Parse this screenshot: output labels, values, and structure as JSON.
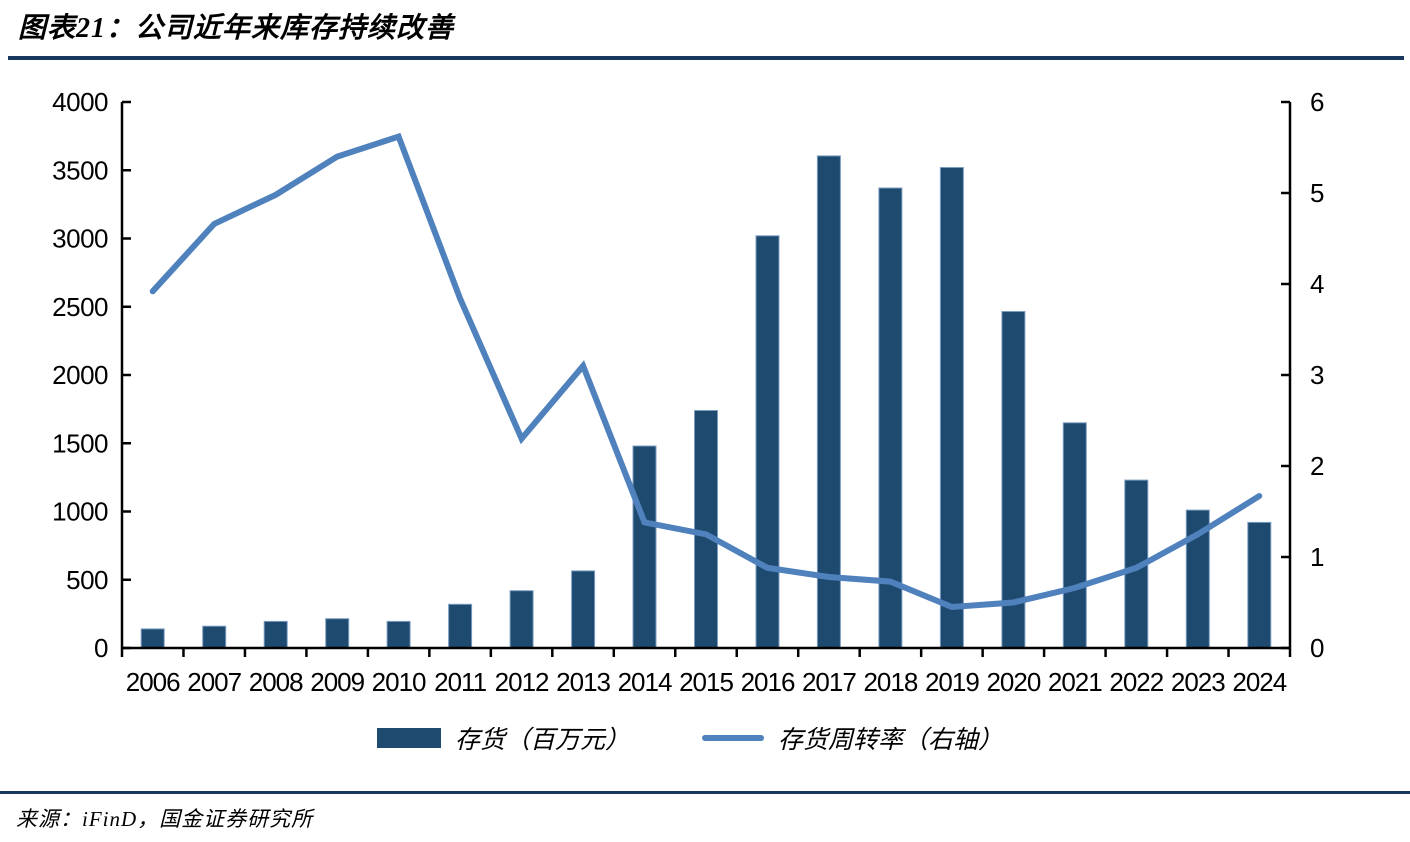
{
  "page": {
    "title": "图表21：公司近年来库存持续改善",
    "source": "来源：iFinD，国金证券研究所"
  },
  "colors": {
    "bar": "#1F4A6F",
    "bar_border": "#7C9DC2",
    "line": "#4F81BD",
    "rule": "#17375E",
    "axis": "#000000",
    "text": "#000000"
  },
  "chart_data": {
    "type": "combo-bar-line",
    "title": "图表21：公司近年来库存持续改善",
    "categories": [
      "2006",
      "2007",
      "2008",
      "2009",
      "2010",
      "2011",
      "2012",
      "2013",
      "2014",
      "2015",
      "2016",
      "2017",
      "2018",
      "2019",
      "2020",
      "2021",
      "2022",
      "2023",
      "2024"
    ],
    "series": [
      {
        "name": "存货（百万元）",
        "type": "bar",
        "axis": "left",
        "values": [
          140,
          160,
          195,
          215,
          195,
          320,
          420,
          565,
          1480,
          1740,
          3020,
          3605,
          3370,
          3520,
          2465,
          1650,
          1230,
          1010,
          920
        ]
      },
      {
        "name": "存货周转率（右轴）",
        "type": "line",
        "axis": "right",
        "values": [
          3.92,
          4.66,
          4.98,
          5.4,
          5.62,
          3.84,
          2.3,
          3.1,
          1.38,
          1.25,
          0.88,
          0.78,
          0.73,
          0.45,
          0.5,
          0.66,
          0.88,
          1.25,
          1.67
        ]
      }
    ],
    "left_axis": {
      "min": 0,
      "max": 4000,
      "step": 500
    },
    "right_axis": {
      "min": 0,
      "max": 6,
      "step": 1
    },
    "grid": false,
    "legend_position": "bottom"
  }
}
